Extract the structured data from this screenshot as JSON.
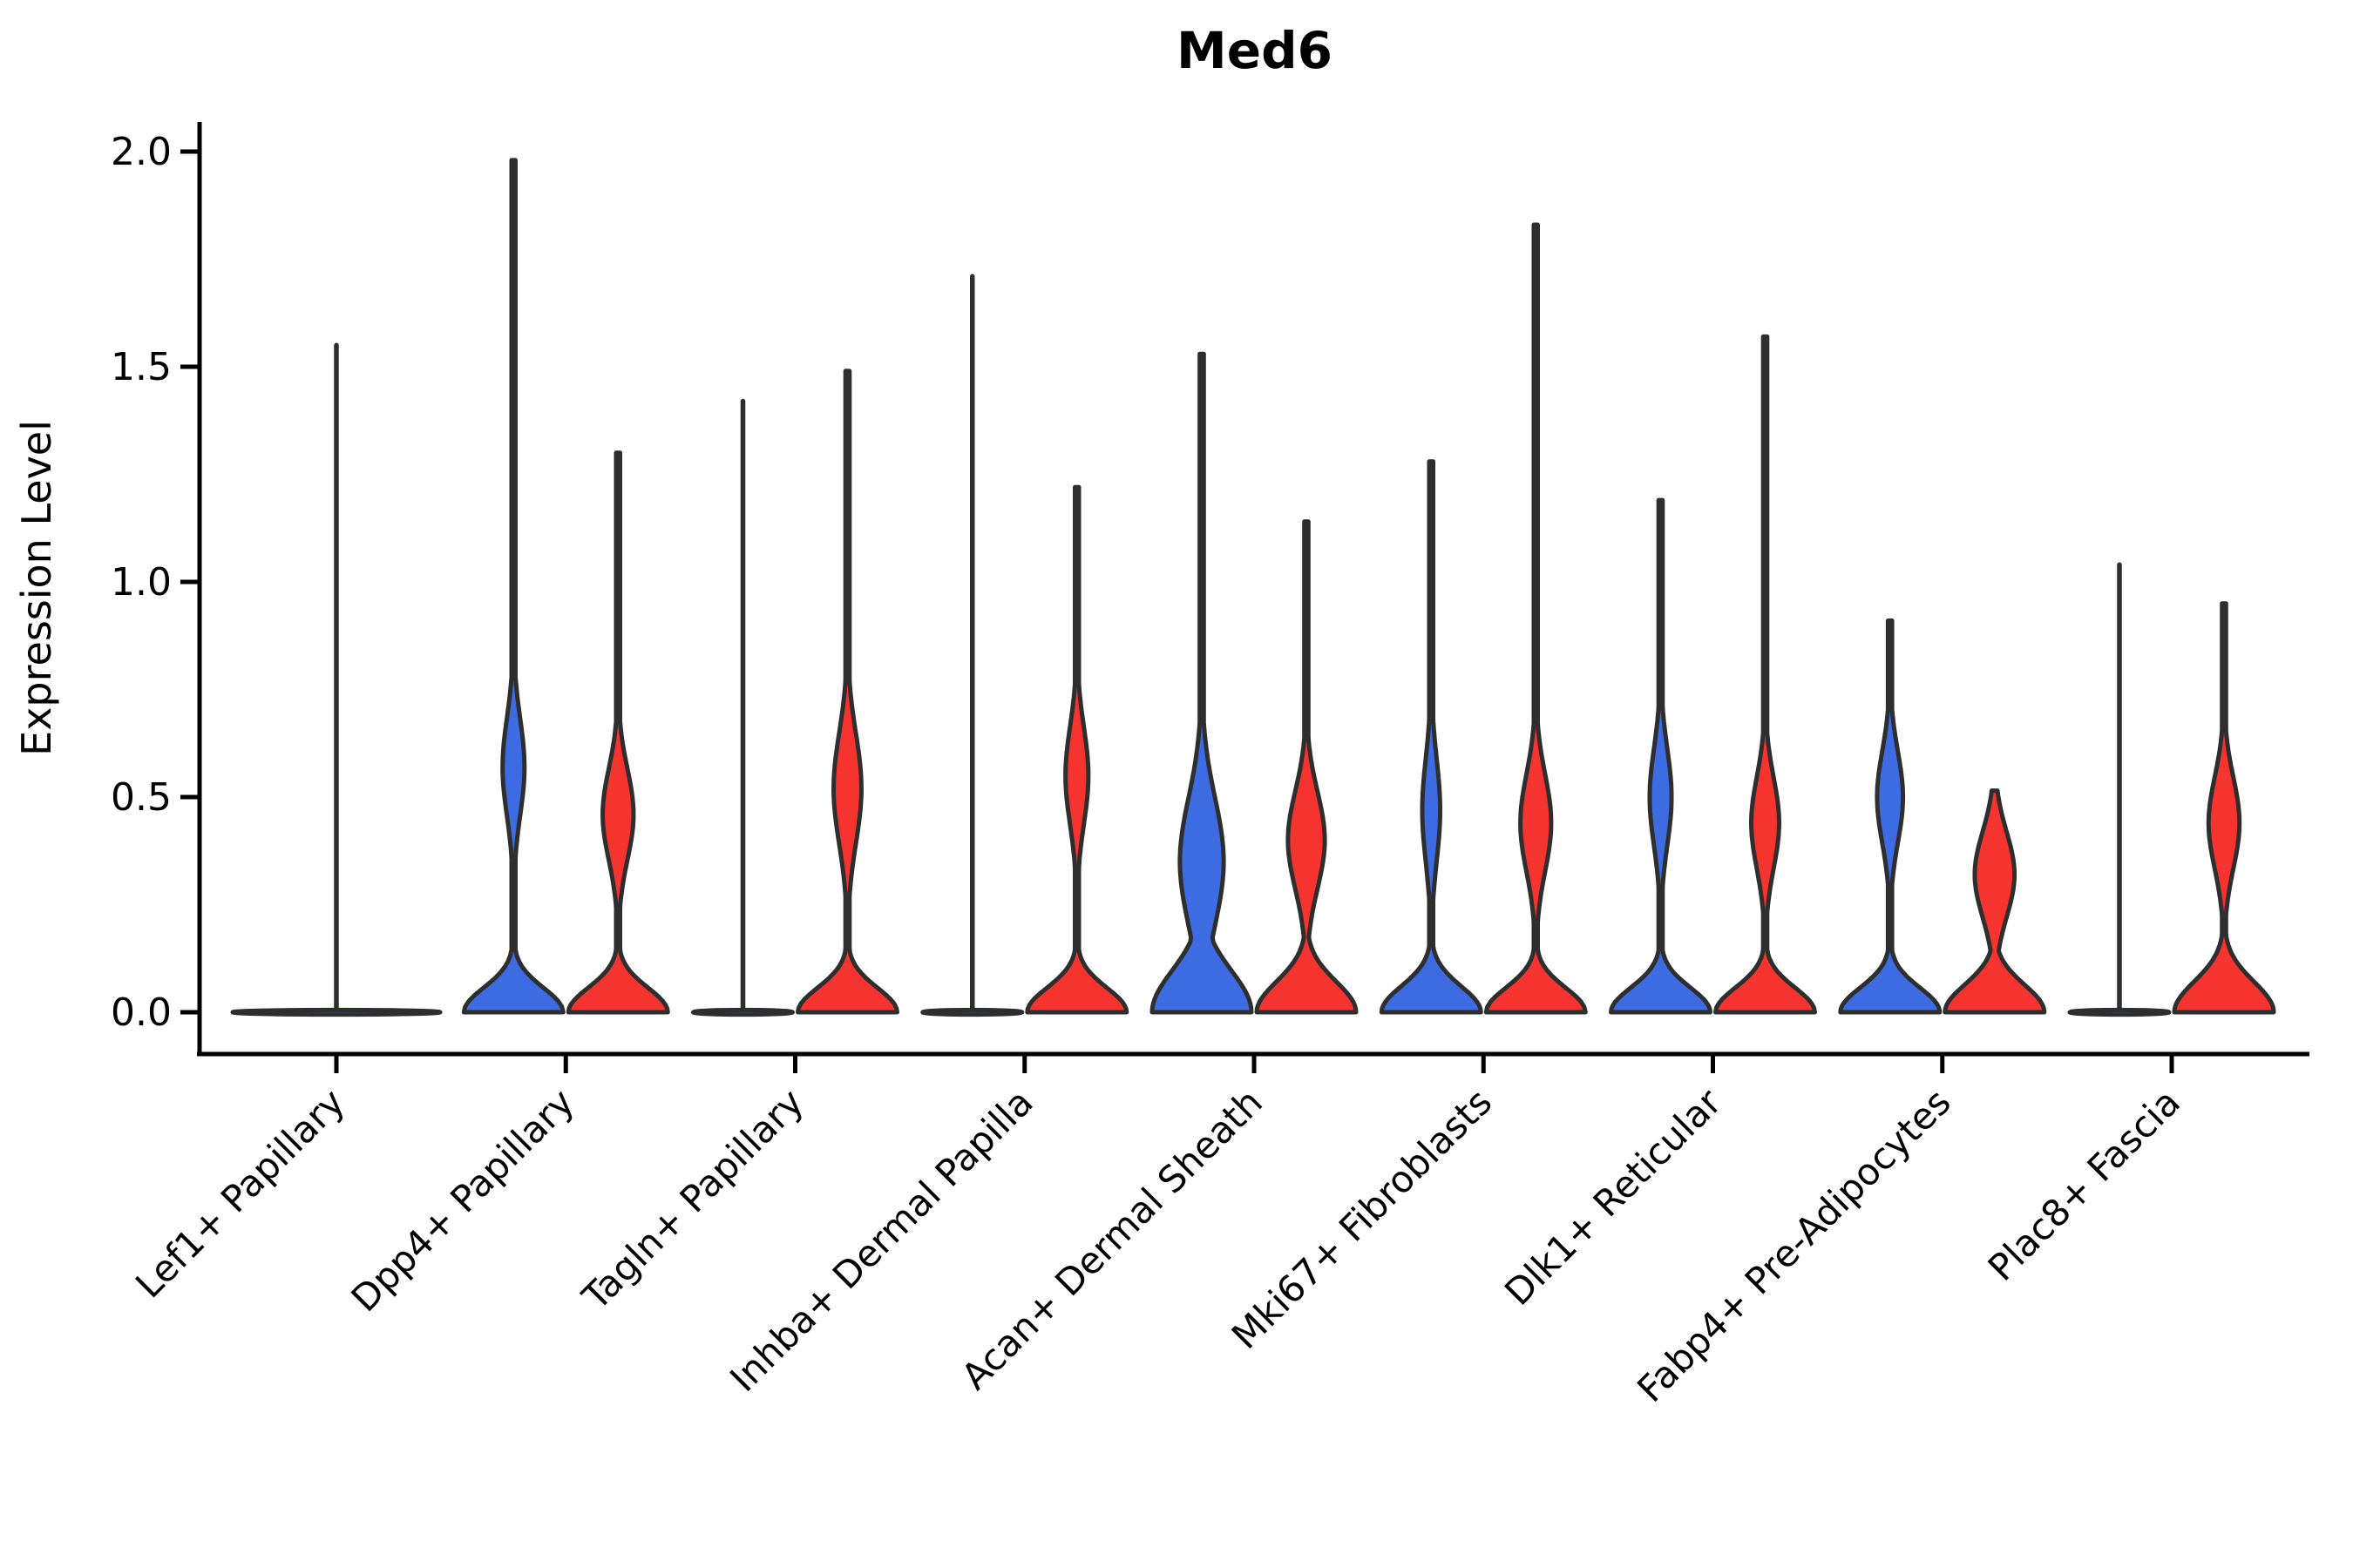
{
  "title": "Med6",
  "ylabel": "Expression Level",
  "colors": {
    "blue_fill": "#3D6BE1",
    "red_fill": "#F5342F",
    "outline": "#2E2E2E",
    "axis": "#000000"
  },
  "chart_data": {
    "type": "violin",
    "title": "Med6",
    "xlabel": "",
    "ylabel": "Expression Level",
    "ylim": [
      0.0,
      2.05
    ],
    "grid": false,
    "legend": "none",
    "yticks": [
      {
        "value": 0.0,
        "label": "0.0"
      },
      {
        "value": 0.5,
        "label": "0.5"
      },
      {
        "value": 1.0,
        "label": "1.0"
      },
      {
        "value": 1.5,
        "label": "1.5"
      },
      {
        "value": 2.0,
        "label": "2.0"
      }
    ],
    "categories": [
      "Lef1+ Papillary",
      "Dpp4+ Papillary",
      "Tagln+ Papillary",
      "Inhba+ Dermal Papilla",
      "Acan+ Dermal Sheath",
      "Mki67+ Fibroblasts",
      "Dlk1+ Reticular",
      "Fabp4+ Pre-Adipocytes",
      "Plac8+ Fascia"
    ],
    "violins": [
      {
        "category_index": 0,
        "slot": "full",
        "color": "blue",
        "kind": "flat",
        "max": 1.55
      },
      {
        "category_index": 1,
        "slot": "left",
        "color": "blue",
        "kind": "density",
        "max": 1.98,
        "base_sigma": 0.08,
        "bulge_amp": 0.22,
        "bulge_center": 0.57,
        "bulge_sigma": 0.16
      },
      {
        "category_index": 1,
        "slot": "right",
        "color": "red",
        "kind": "density",
        "max": 1.3,
        "base_sigma": 0.08,
        "bulge_amp": 0.31,
        "bulge_center": 0.46,
        "bulge_sigma": 0.15
      },
      {
        "category_index": 2,
        "slot": "left",
        "color": "blue",
        "kind": "flat",
        "max": 1.42
      },
      {
        "category_index": 2,
        "slot": "right",
        "color": "red",
        "kind": "density",
        "max": 1.49,
        "base_sigma": 0.08,
        "bulge_amp": 0.28,
        "bulge_center": 0.52,
        "bulge_sigma": 0.18
      },
      {
        "category_index": 3,
        "slot": "left",
        "color": "blue",
        "kind": "flat",
        "max": 1.71
      },
      {
        "category_index": 3,
        "slot": "right",
        "color": "red",
        "kind": "density",
        "max": 1.22,
        "base_sigma": 0.08,
        "bulge_amp": 0.23,
        "bulge_center": 0.55,
        "bulge_sigma": 0.16
      },
      {
        "category_index": 4,
        "slot": "left",
        "color": "blue",
        "kind": "density",
        "max": 1.53,
        "base_sigma": 0.135,
        "bulge_amp": 0.44,
        "bulge_center": 0.35,
        "bulge_sigma": 0.21
      },
      {
        "category_index": 4,
        "slot": "right",
        "color": "red",
        "kind": "density",
        "max": 1.14,
        "base_sigma": 0.1,
        "bulge_amp": 0.37,
        "bulge_center": 0.4,
        "bulge_sigma": 0.16
      },
      {
        "category_index": 5,
        "slot": "left",
        "color": "blue",
        "kind": "density",
        "max": 1.28,
        "base_sigma": 0.085,
        "bulge_amp": 0.18,
        "bulge_center": 0.47,
        "bulge_sigma": 0.17
      },
      {
        "category_index": 5,
        "slot": "right",
        "color": "red",
        "kind": "density",
        "max": 1.83,
        "base_sigma": 0.08,
        "bulge_amp": 0.31,
        "bulge_center": 0.44,
        "bulge_sigma": 0.16
      },
      {
        "category_index": 6,
        "slot": "left",
        "color": "blue",
        "kind": "density",
        "max": 1.19,
        "base_sigma": 0.08,
        "bulge_amp": 0.22,
        "bulge_center": 0.5,
        "bulge_sigma": 0.16
      },
      {
        "category_index": 6,
        "slot": "right",
        "color": "red",
        "kind": "density",
        "max": 1.57,
        "base_sigma": 0.08,
        "bulge_amp": 0.28,
        "bulge_center": 0.44,
        "bulge_sigma": 0.15
      },
      {
        "category_index": 7,
        "slot": "left",
        "color": "blue",
        "kind": "density",
        "max": 0.91,
        "base_sigma": 0.08,
        "bulge_amp": 0.26,
        "bulge_center": 0.5,
        "bulge_sigma": 0.15
      },
      {
        "category_index": 7,
        "slot": "right",
        "color": "red",
        "kind": "density",
        "max": 0.515,
        "base_sigma": 0.09,
        "bulge_amp": 0.4,
        "bulge_center": 0.32,
        "bulge_sigma": 0.14
      },
      {
        "category_index": 8,
        "slot": "left",
        "color": "blue",
        "kind": "flat",
        "max": 1.04
      },
      {
        "category_index": 8,
        "slot": "right",
        "color": "red",
        "kind": "density",
        "max": 0.95,
        "base_sigma": 0.1,
        "bulge_amp": 0.31,
        "bulge_center": 0.44,
        "bulge_sigma": 0.15
      }
    ]
  }
}
